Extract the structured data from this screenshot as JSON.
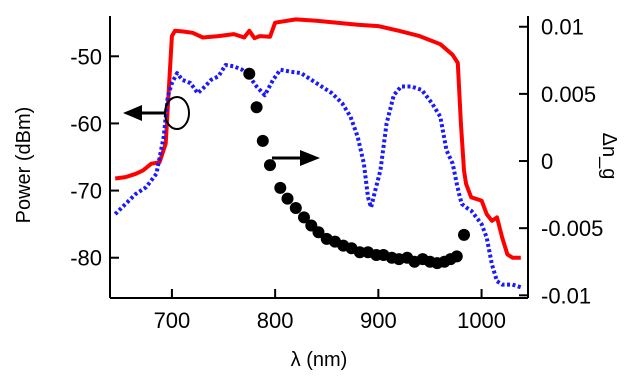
{
  "chart_data": {
    "type": "line",
    "xlabel": "λ (nm)",
    "ylabel_left": "Power (dBm)",
    "ylabel_right": "Δn_g",
    "xlim": [
      640,
      1045
    ],
    "ylim_left": [
      -86,
      -44
    ],
    "ylim_right": [
      -0.0102,
      0.0108
    ],
    "x_ticks": [
      700,
      800,
      900,
      1000
    ],
    "y_left_ticks": [
      -50,
      -60,
      -70,
      -80
    ],
    "y_right_ticks": [
      0.01,
      0.005,
      0,
      -0.005,
      -0.01
    ],
    "y_right_tick_labels": [
      "0.01",
      "0.005",
      "0",
      "-0.005",
      "-0.01"
    ],
    "grid": false,
    "series": [
      {
        "axis": "left",
        "style": "solid",
        "color": "#ff0000",
        "x": [
          645,
          655,
          665,
          672,
          680,
          688,
          694,
          697,
          700,
          703,
          710,
          720,
          730,
          745,
          760,
          770,
          775,
          780,
          785,
          795,
          800,
          820,
          840,
          860,
          880,
          900,
          920,
          940,
          960,
          972,
          977,
          980,
          983,
          985,
          990,
          1000,
          1005,
          1010,
          1015,
          1020,
          1025,
          1030,
          1038
        ],
        "y": [
          -68.2,
          -68,
          -67.5,
          -67,
          -66,
          -65.8,
          -63,
          -55,
          -47,
          -46.2,
          -46.3,
          -46.5,
          -47.2,
          -47,
          -46.7,
          -47.2,
          -46.2,
          -47.3,
          -47,
          -47.1,
          -45,
          -44.5,
          -44.7,
          -45,
          -45.3,
          -45.5,
          -46.2,
          -47,
          -48.2,
          -49.8,
          -51,
          -60,
          -67,
          -69,
          -71,
          -71.5,
          -73.5,
          -74.5,
          -74,
          -77,
          -79.5,
          -80,
          -80
        ]
      },
      {
        "axis": "left",
        "style": "dotted",
        "color": "#1a1aff",
        "x": [
          645,
          655,
          665,
          675,
          685,
          692,
          696,
          700,
          705,
          710,
          718,
          725,
          732,
          738,
          745,
          752,
          760,
          768,
          775,
          782,
          790,
          798,
          805,
          815,
          825,
          835,
          845,
          855,
          865,
          873,
          880,
          886,
          890,
          893,
          897,
          902,
          908,
          915,
          922,
          932,
          942,
          952,
          960,
          966,
          972,
          976,
          979,
          981,
          985,
          990,
          1000,
          1005,
          1010,
          1015,
          1020,
          1030,
          1040
        ],
        "y": [
          -73.5,
          -72,
          -70.5,
          -69.5,
          -67.5,
          -62,
          -56,
          -54,
          -52.5,
          -53.5,
          -54,
          -55.5,
          -54.5,
          -53.5,
          -53,
          -51.3,
          -51.5,
          -52,
          -53,
          -54.5,
          -55.8,
          -53.5,
          -52,
          -52.3,
          -52.5,
          -53.5,
          -54.5,
          -55.5,
          -57,
          -59,
          -62,
          -66,
          -71,
          -72.5,
          -70,
          -67,
          -60,
          -55.8,
          -54.5,
          -54.5,
          -55,
          -57,
          -59,
          -64,
          -66,
          -69,
          -71,
          -72,
          -72.5,
          -73,
          -75,
          -77,
          -81,
          -83.5,
          -84,
          -84,
          -84.5
        ]
      },
      {
        "axis": "right",
        "style": "markers",
        "color": "#000000",
        "x": [
          775,
          782,
          788,
          795,
          805,
          812,
          820,
          828,
          835,
          842,
          850,
          858,
          866,
          874,
          882,
          890,
          898,
          905,
          913,
          920,
          928,
          935,
          943,
          950,
          957,
          964,
          970,
          976,
          983
        ],
        "y": [
          0.0065,
          0.004,
          0.0015,
          -0.0003,
          -0.002,
          -0.0028,
          -0.0035,
          -0.0042,
          -0.0048,
          -0.0053,
          -0.0058,
          -0.006,
          -0.0063,
          -0.0065,
          -0.0068,
          -0.0068,
          -0.007,
          -0.007,
          -0.0072,
          -0.0073,
          -0.0072,
          -0.0075,
          -0.0073,
          -0.0075,
          -0.0076,
          -0.0075,
          -0.0073,
          -0.0071,
          -0.0055
        ]
      }
    ]
  }
}
